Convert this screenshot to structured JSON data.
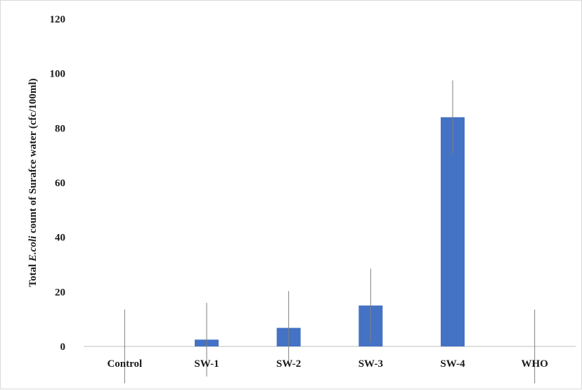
{
  "chart_data": {
    "type": "bar",
    "title": "",
    "xlabel": "",
    "ylabel": {
      "prefix": "Total ",
      "italic": "E.coli",
      "suffix": " count of Surafce water (cfc/100ml)"
    },
    "categories": [
      "Control",
      "SW-1",
      "SW-2",
      "SW-3",
      "SW-4",
      "WHO"
    ],
    "values": [
      0,
      2.5,
      6.8,
      15,
      84,
      0
    ],
    "error_bars": [
      13.5,
      13.5,
      13.5,
      13.5,
      13.5,
      13.5
    ],
    "ylim": [
      0,
      120
    ],
    "yticks": [
      0,
      20,
      40,
      60,
      80,
      100,
      120
    ],
    "grid": false,
    "legend": "none",
    "colors": {
      "bar": "#4472c4",
      "error_bar": "#7f7f7f",
      "axis": "#bfbfbf",
      "text": "#1a1a1a"
    }
  }
}
